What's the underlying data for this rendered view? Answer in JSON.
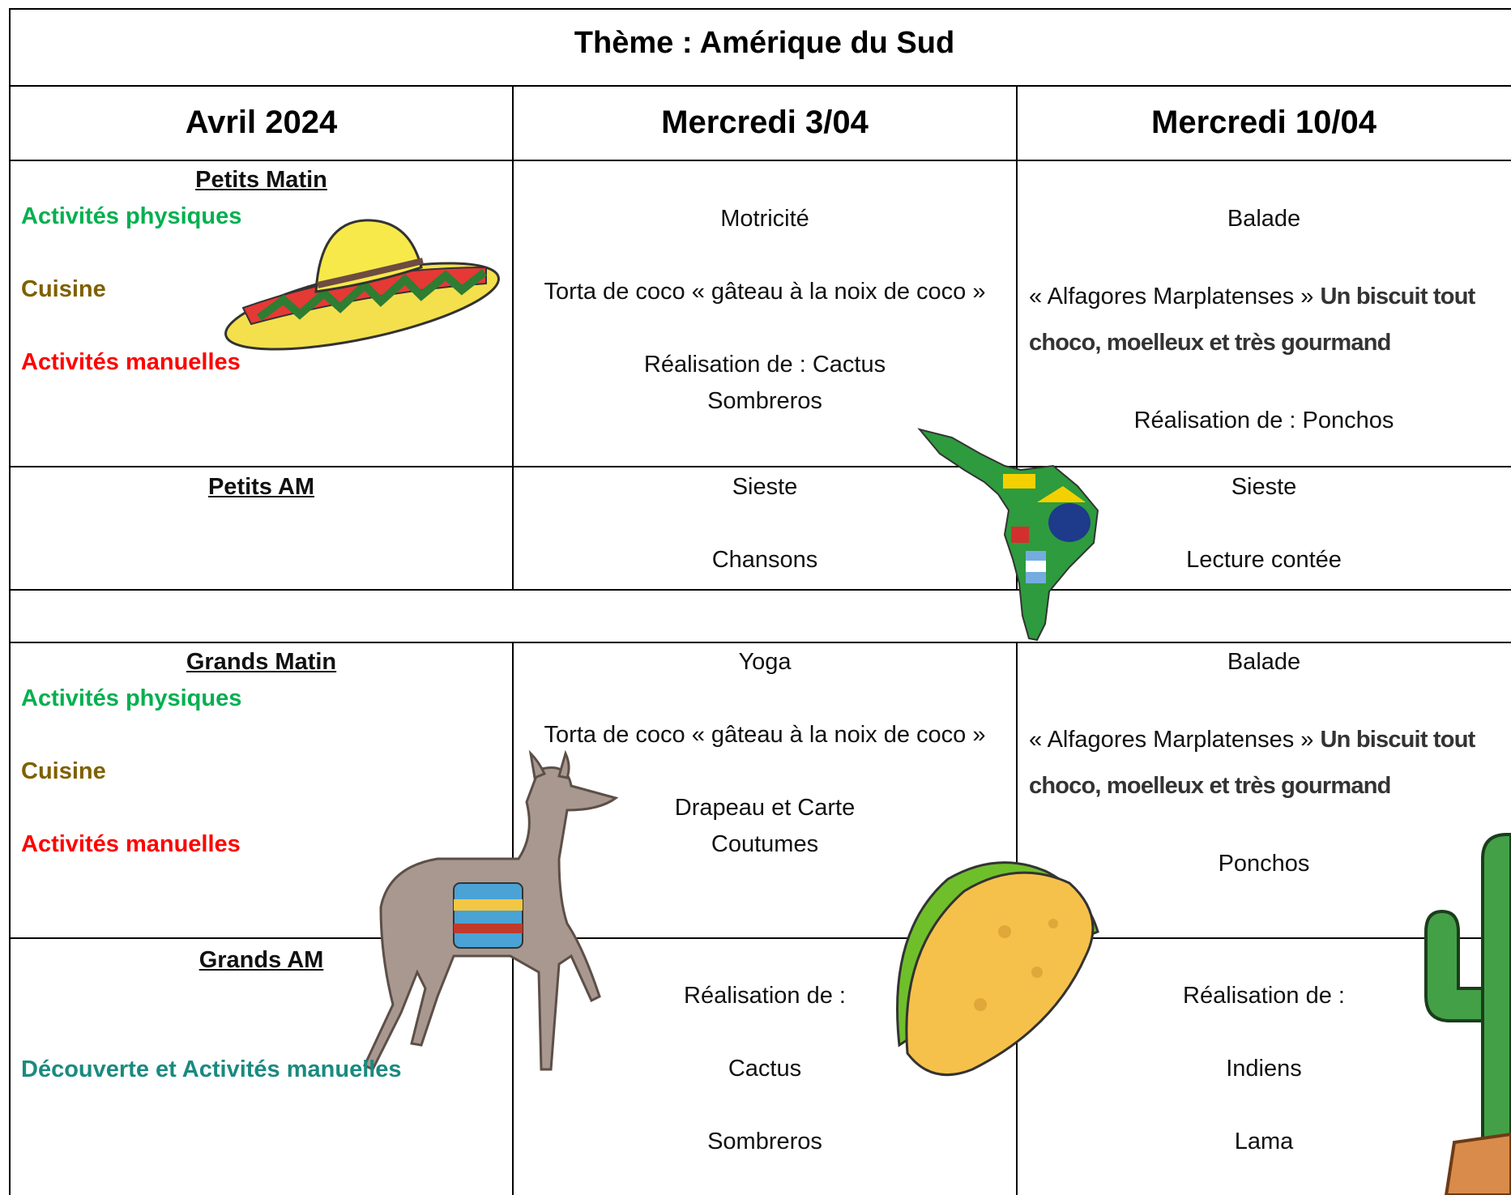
{
  "title": "Thème : Amérique du Sud",
  "header": {
    "month": "Avril 2024",
    "days": [
      "Mercredi 3/04",
      "Mercredi 10/04"
    ]
  },
  "rows": [
    {
      "label": "Petits Matin",
      "activities": [
        {
          "text": "Activités physiques",
          "color": "#00b050"
        },
        {
          "text": "Cuisine",
          "color": "#7f6000"
        },
        {
          "text": "Activités manuelles",
          "color": "#ff0000"
        }
      ],
      "days": [
        [
          [
            "Motricité"
          ],
          [
            "Torta de coco « gâteau à la noix de coco »"
          ],
          [
            "Réalisation de : Cactus",
            "Sombreros"
          ]
        ],
        [
          [
            "Balade"
          ],
          {
            "text": "« Alfagores Marplatenses »",
            "highlight": "Un biscuit tout choco, moelleux et très gourmand"
          },
          [
            "Réalisation de : Ponchos"
          ]
        ]
      ]
    },
    {
      "label": "Petits AM",
      "days": [
        [
          [
            "Sieste"
          ],
          [
            "Chansons"
          ]
        ],
        [
          [
            "Sieste"
          ],
          [
            "Lecture contée"
          ]
        ]
      ]
    },
    {
      "label": "Grands Matin",
      "activities": [
        {
          "text": "Activités physiques",
          "color": "#00b050"
        },
        {
          "text": "Cuisine",
          "color": "#7f6000"
        },
        {
          "text": "Activités manuelles",
          "color": "#ff0000"
        }
      ],
      "days": [
        [
          [
            "Yoga"
          ],
          [
            "Torta de coco « gâteau à la noix de coco »"
          ],
          [
            "Drapeau et Carte",
            "Coutumes"
          ]
        ],
        [
          [
            "Balade"
          ],
          {
            "text": "« Alfagores Marplatenses »",
            "highlight": "Un biscuit tout choco, moelleux et très gourmand"
          },
          [
            "Ponchos"
          ]
        ]
      ]
    },
    {
      "label": "Grands AM",
      "activities": [
        {
          "text": "Découverte et Activités manuelles",
          "color": "#1a8a80"
        }
      ],
      "days": [
        [
          [
            "Réalisation de :"
          ],
          [
            "Cactus"
          ],
          [
            "Sombreros"
          ]
        ],
        [
          [
            "Réalisation de :"
          ],
          [
            "Indiens"
          ],
          [
            "Lama"
          ]
        ]
      ]
    }
  ]
}
